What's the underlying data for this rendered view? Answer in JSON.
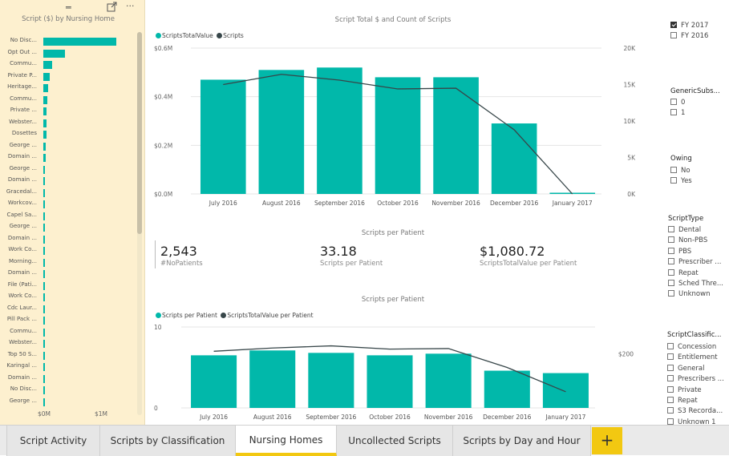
{
  "left_panel": {
    "title": "Script ($) by Nursing Home",
    "x_ticks": [
      "$0M",
      "$1M"
    ],
    "chart_data": {
      "type": "bar",
      "orientation": "horizontal",
      "title": "Script ($) by Nursing Home",
      "categories": [
        "No Disc...",
        "Opt Out ...",
        "Commu...",
        "Private P...",
        "Heritage...",
        "Commu...",
        "Private ...",
        "Webster...",
        "Dosettes",
        "George ...",
        "Domain ...",
        "George ...",
        "Domain ...",
        "Gracedal...",
        "Workcov...",
        "Capel Sa...",
        "George ...",
        "Domain ...",
        "Work Co...",
        "Morning...",
        "Domain ...",
        "File (Pati...",
        "Work Co...",
        "Cdc Laur...",
        "Pill Pack ...",
        "Commu...",
        "Webster...",
        "Top 50 S...",
        "Karingal ...",
        "Domain ...",
        "No Disc...",
        "George ..."
      ],
      "values": [
        1.3,
        0.38,
        0.16,
        0.12,
        0.09,
        0.07,
        0.06,
        0.06,
        0.05,
        0.04,
        0.04,
        0.03,
        0.03,
        0.03,
        0.03,
        0.02,
        0.02,
        0.02,
        0.02,
        0.02,
        0.02,
        0.02,
        0.01,
        0.01,
        0.01,
        0.01,
        0.01,
        0.01,
        0.01,
        0.01,
        0.01,
        0.01
      ],
      "unit": "$M",
      "xlim": [
        0,
        1.5
      ]
    }
  },
  "toolbar_icons": [
    "drag-handle-icon",
    "focus-mode-icon",
    "more-options-icon"
  ],
  "top_chart": {
    "title": "Script Total $ and Count of Scripts",
    "legend": [
      {
        "name": "ScriptsTotalValue",
        "color": "#01b8aa"
      },
      {
        "name": "Scripts",
        "color": "#374649"
      }
    ],
    "y_left_ticks": [
      "$0.6M",
      "$0.4M",
      "$0.2M",
      "$0.0M"
    ],
    "y_right_ticks": [
      "20K",
      "15K",
      "10K",
      "5K",
      "0K"
    ],
    "chart_data": {
      "type": "bar",
      "categories": [
        "July 2016",
        "August 2016",
        "September 2016",
        "October 2016",
        "November 2016",
        "December 2016",
        "January 2017"
      ],
      "series": [
        {
          "name": "ScriptsTotalValue",
          "type": "bar",
          "axis": "left",
          "values": [
            0.47,
            0.51,
            0.52,
            0.48,
            0.48,
            0.29,
            0.005
          ]
        },
        {
          "name": "Scripts",
          "type": "line",
          "axis": "right",
          "values": [
            15000,
            16400,
            15600,
            14400,
            14500,
            8800,
            0
          ]
        }
      ],
      "ylim_left": [
        0,
        0.6
      ],
      "ylim_right": [
        0,
        20000
      ]
    }
  },
  "cards": {
    "title": "Scripts per Patient",
    "items": [
      {
        "value": "2,543",
        "label": "#NoPatients"
      },
      {
        "value": "33.18",
        "label": "Scripts per Patient"
      },
      {
        "value": "$1,080.72",
        "label": "ScriptsTotalValue per Patient"
      }
    ]
  },
  "bottom_chart": {
    "title": "Scripts per Patient",
    "legend": [
      {
        "name": "Scripts per Patient",
        "color": "#01b8aa"
      },
      {
        "name": "ScriptsTotalValue per Patient",
        "color": "#374649"
      }
    ],
    "y_left_ticks": [
      "10",
      "0"
    ],
    "y_right_ticks": [
      "$200"
    ],
    "chart_data": {
      "type": "bar",
      "categories": [
        "July 2016",
        "August 2016",
        "September 2016",
        "October 2016",
        "November 2016",
        "December 2016",
        "January 2017"
      ],
      "series": [
        {
          "name": "Scripts per Patient",
          "type": "bar",
          "axis": "left",
          "values": [
            6.5,
            7.1,
            6.8,
            6.5,
            6.7,
            4.6,
            4.3
          ]
        },
        {
          "name": "ScriptsTotalValue per Patient",
          "type": "line",
          "axis": "right",
          "values": [
            210,
            222,
            230,
            218,
            220,
            150,
            60
          ]
        }
      ],
      "ylim_left": [
        0,
        10
      ],
      "ylim_right": [
        0,
        300
      ]
    }
  },
  "slicers": [
    {
      "title": "",
      "items": [
        {
          "label": "FY 2017",
          "checked": true
        },
        {
          "label": "FY 2016",
          "checked": false
        }
      ]
    },
    {
      "title": "GenericSubs...",
      "items": [
        {
          "label": "0",
          "checked": false
        },
        {
          "label": "1",
          "checked": false
        }
      ]
    },
    {
      "title": "Owing",
      "items": [
        {
          "label": "No",
          "checked": false
        },
        {
          "label": "Yes",
          "checked": false
        }
      ]
    },
    {
      "title": "ScriptType",
      "items": [
        {
          "label": "Dental",
          "checked": false
        },
        {
          "label": "Non-PBS",
          "checked": false
        },
        {
          "label": "PBS",
          "checked": false
        },
        {
          "label": "Prescriber ...",
          "checked": false
        },
        {
          "label": "Repat",
          "checked": false
        },
        {
          "label": "Sched Thre...",
          "checked": false
        },
        {
          "label": "Unknown",
          "checked": false
        }
      ]
    },
    {
      "title": "ScriptClassific...",
      "items": [
        {
          "label": "Concession",
          "checked": false
        },
        {
          "label": "Entitlement",
          "checked": false
        },
        {
          "label": "General",
          "checked": false
        },
        {
          "label": "Prescribers ...",
          "checked": false
        },
        {
          "label": "Private",
          "checked": false
        },
        {
          "label": "Repat",
          "checked": false
        },
        {
          "label": "S3 Recorda...",
          "checked": false
        },
        {
          "label": "Unknown 1",
          "checked": false
        }
      ]
    }
  ],
  "tabs": [
    {
      "label": "Script Activity",
      "active": false
    },
    {
      "label": "Scripts by Classification",
      "active": false
    },
    {
      "label": "Nursing Homes",
      "active": true
    },
    {
      "label": "Uncollected Scripts",
      "active": false
    },
    {
      "label": "Scripts by Day and Hour",
      "active": false
    }
  ],
  "add_tab_label": "+",
  "colors": {
    "teal": "#01b8aa",
    "dark": "#374649",
    "accent": "#f2c811",
    "panel": "#fdf0cf"
  }
}
